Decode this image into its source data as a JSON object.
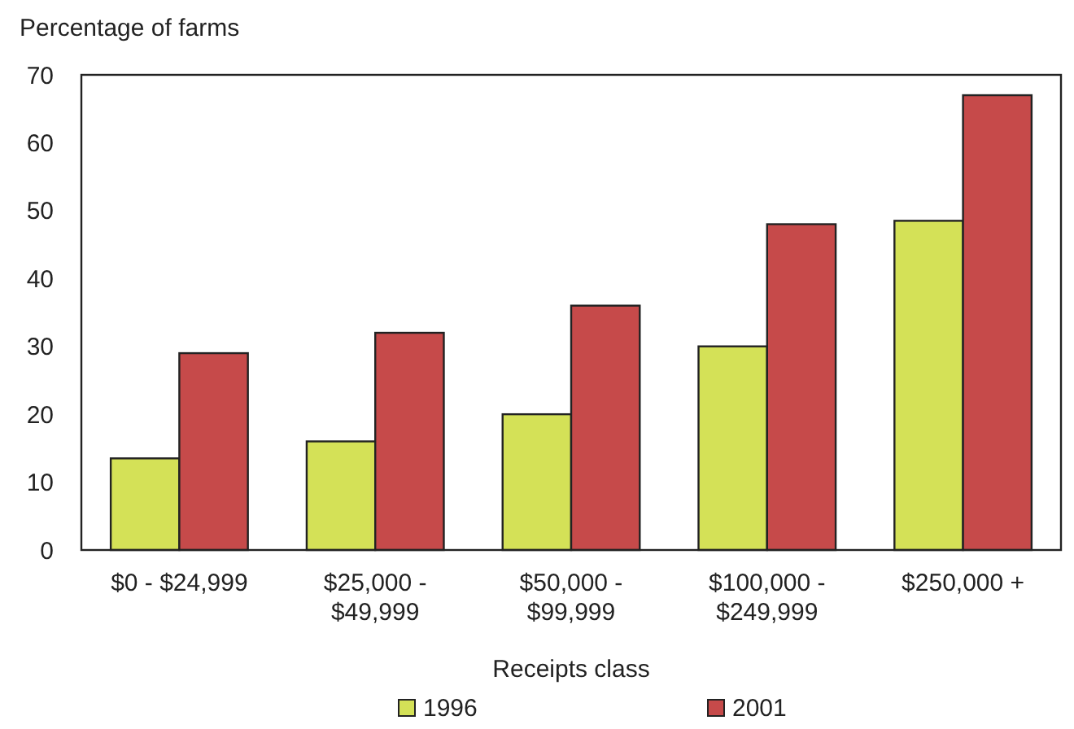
{
  "chart_data": {
    "type": "bar",
    "ylabel": "Percentage of farms",
    "xlabel": "Receipts class",
    "categories": [
      "$0 - $24,999",
      "$25,000 -\n$49,999",
      "$50,000 -\n$99,999",
      "$100,000 -\n$249,999",
      "$250,000 +"
    ],
    "series": [
      {
        "name": "1996",
        "color": "#d4e157",
        "values": [
          13.5,
          16,
          20,
          30,
          48.5
        ]
      },
      {
        "name": "2001",
        "color": "#c64a4a",
        "values": [
          29,
          32,
          36,
          48,
          67
        ]
      }
    ],
    "ylim": [
      0,
      70
    ],
    "yticks": [
      0,
      10,
      20,
      30,
      40,
      50,
      60,
      70
    ],
    "grid": false,
    "legend": "bottom"
  }
}
